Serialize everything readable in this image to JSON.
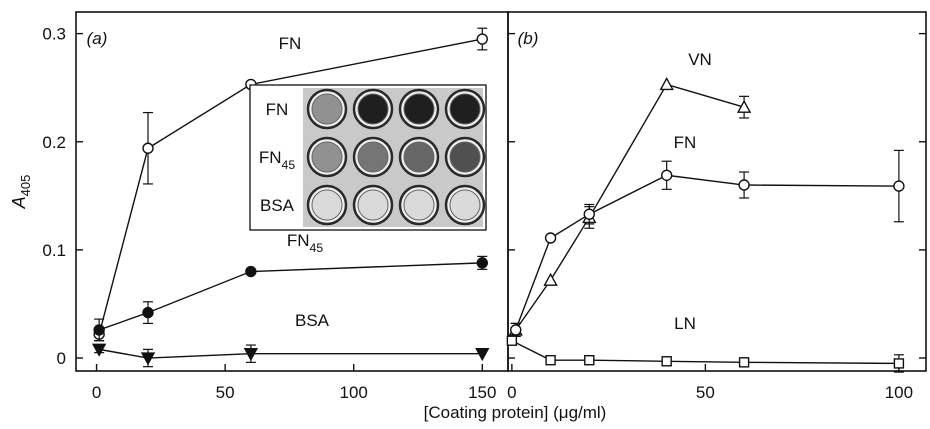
{
  "figure": {
    "xlabel": "[Coating protein] (μg/ml)"
  },
  "chart_data": [
    {
      "panel_label": "(a)",
      "type": "line",
      "ylabel": "A405",
      "ylabel_main": "A",
      "ylabel_sub": "405",
      "xlim": [
        -8,
        160
      ],
      "ylim": [
        -0.012,
        0.32
      ],
      "xticks": [
        0,
        50,
        100,
        150
      ],
      "yticks": [
        0,
        0.1,
        0.2,
        0.3
      ],
      "ytick_labels": [
        "0",
        "0.1",
        "0.2",
        "0.3"
      ],
      "series": [
        {
          "name": "FN",
          "label_main": "FN",
          "label_sub": "",
          "marker": "circle-open",
          "x": [
            1,
            20,
            60,
            150
          ],
          "y": [
            0.022,
            0.194,
            0.253,
            0.295
          ],
          "err": [
            0.006,
            0.033,
            0,
            0.01
          ]
        },
        {
          "name": "FN45",
          "label_main": "FN",
          "label_sub": "45",
          "marker": "circle-filled",
          "x": [
            1,
            20,
            60,
            150
          ],
          "y": [
            0.026,
            0.042,
            0.08,
            0.088
          ],
          "err": [
            0.01,
            0.01,
            0,
            0.006
          ]
        },
        {
          "name": "BSA",
          "label_main": "BSA",
          "label_sub": "",
          "marker": "triangle-down-filled",
          "x": [
            1,
            20,
            60,
            150
          ],
          "y": [
            0.008,
            0.0,
            0.004,
            0.004
          ],
          "err": [
            0.003,
            0.008,
            0.008,
            0
          ]
        }
      ],
      "inset": {
        "rows": [
          {
            "label_main": "FN",
            "label_sub": "",
            "wells": [
              0.42,
              0.95,
              0.95,
              0.95
            ]
          },
          {
            "label_main": "FN",
            "label_sub": "45",
            "wells": [
              0.42,
              0.55,
              0.62,
              0.72
            ]
          },
          {
            "label_main": "BSA",
            "label_sub": "",
            "wells": [
              0.08,
              0.08,
              0.08,
              0.08
            ]
          }
        ]
      }
    },
    {
      "panel_label": "(b)",
      "type": "line",
      "xlim": [
        -1,
        107
      ],
      "ylim": [
        -0.012,
        0.32
      ],
      "xticks": [
        0,
        50,
        100
      ],
      "yticks": [
        0,
        0.1,
        0.2,
        0.3
      ],
      "series": [
        {
          "name": "VN",
          "label_main": "VN",
          "label_sub": "",
          "marker": "triangle-up-open",
          "x": [
            1,
            10,
            20,
            40,
            60
          ],
          "y": [
            0.026,
            0.072,
            0.13,
            0.253,
            0.232
          ],
          "err": [
            0.006,
            0,
            0.01,
            0,
            0.01
          ]
        },
        {
          "name": "FN",
          "label_main": "FN",
          "label_sub": "",
          "marker": "circle-open",
          "x": [
            1,
            10,
            20,
            40,
            60,
            100
          ],
          "y": [
            0.026,
            0.111,
            0.133,
            0.169,
            0.16,
            0.159
          ],
          "err": [
            0.006,
            0,
            0.009,
            0.013,
            0.012,
            0.033
          ]
        },
        {
          "name": "LN",
          "label_main": "LN",
          "label_sub": "",
          "marker": "square-open",
          "x": [
            0,
            10,
            20,
            40,
            60,
            100
          ],
          "y": [
            0.016,
            -0.002,
            -0.002,
            -0.003,
            -0.004,
            -0.005
          ],
          "err": [
            0.003,
            0,
            0,
            0,
            0,
            0.008
          ]
        }
      ]
    }
  ]
}
